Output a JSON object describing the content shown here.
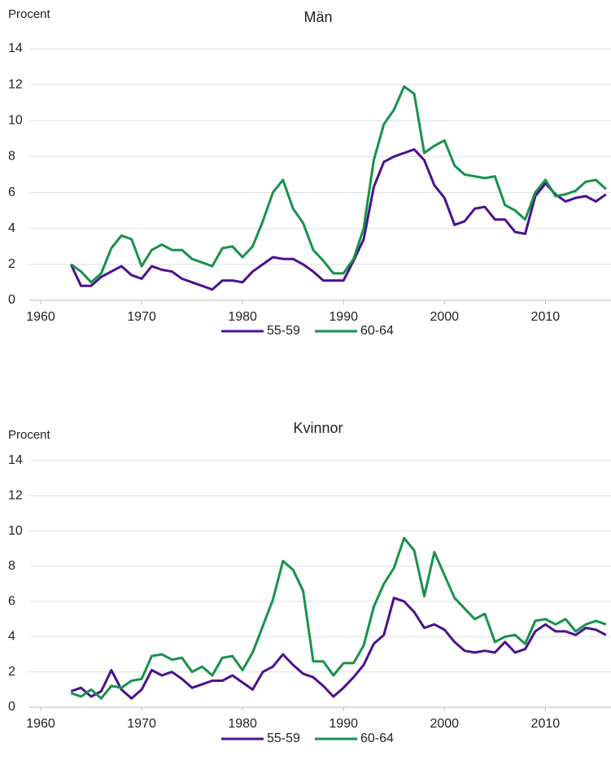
{
  "chart_data": [
    {
      "type": "line",
      "title": "Män",
      "y_label": "Procent",
      "x": [
        1963,
        1964,
        1965,
        1966,
        1967,
        1968,
        1969,
        1970,
        1971,
        1972,
        1973,
        1974,
        1975,
        1976,
        1977,
        1978,
        1979,
        1980,
        1981,
        1982,
        1983,
        1984,
        1985,
        1986,
        1987,
        1988,
        1989,
        1990,
        1991,
        1992,
        1993,
        1994,
        1995,
        1996,
        1997,
        1998,
        1999,
        2000,
        2001,
        2002,
        2003,
        2004,
        2005,
        2006,
        2007,
        2008,
        2009,
        2010,
        2011,
        2012,
        2013,
        2014,
        2015,
        2016
      ],
      "series": [
        {
          "name": "55-59",
          "color": "#4b118f",
          "values": [
            2.0,
            0.8,
            0.8,
            1.3,
            1.6,
            1.9,
            1.4,
            1.2,
            1.9,
            1.7,
            1.6,
            1.2,
            1.0,
            0.8,
            0.6,
            1.1,
            1.1,
            1.0,
            1.6,
            2.0,
            2.4,
            2.3,
            2.3,
            2.0,
            1.6,
            1.1,
            1.1,
            1.1,
            2.2,
            3.4,
            6.3,
            7.7,
            8.0,
            8.2,
            8.4,
            7.8,
            6.4,
            5.7,
            4.2,
            4.4,
            5.1,
            5.2,
            4.5,
            4.5,
            3.8,
            3.7,
            5.8,
            6.5,
            5.9,
            5.5,
            5.7,
            5.8,
            5.5,
            5.9
          ]
        },
        {
          "name": "60-64",
          "color": "#17924b",
          "values": [
            2.0,
            1.6,
            1.0,
            1.5,
            2.9,
            3.6,
            3.4,
            1.9,
            2.8,
            3.1,
            2.8,
            2.8,
            2.3,
            2.1,
            1.9,
            2.9,
            3.0,
            2.4,
            3.0,
            4.4,
            6.0,
            6.7,
            5.1,
            4.3,
            2.8,
            2.2,
            1.5,
            1.5,
            2.3,
            4.0,
            7.8,
            9.8,
            10.6,
            11.9,
            11.5,
            8.2,
            8.6,
            8.9,
            7.5,
            7.0,
            6.9,
            6.8,
            6.9,
            5.3,
            5.0,
            4.5,
            6.0,
            6.7,
            5.8,
            5.9,
            6.1,
            6.6,
            6.7,
            6.2
          ]
        }
      ],
      "xlim": [
        1960,
        2016.5
      ],
      "xticks": [
        1960,
        1970,
        1980,
        1990,
        2000,
        2010
      ],
      "ylim": [
        0,
        14
      ],
      "yticks": [
        0,
        2,
        4,
        6,
        8,
        10,
        12,
        14
      ],
      "grid": true,
      "legend": "bottom"
    },
    {
      "type": "line",
      "title": "Kvinnor",
      "y_label": "Procent",
      "x": [
        1963,
        1964,
        1965,
        1966,
        1967,
        1968,
        1969,
        1970,
        1971,
        1972,
        1973,
        1974,
        1975,
        1976,
        1977,
        1978,
        1979,
        1980,
        1981,
        1982,
        1983,
        1984,
        1985,
        1986,
        1987,
        1988,
        1989,
        1990,
        1991,
        1992,
        1993,
        1994,
        1995,
        1996,
        1997,
        1998,
        1999,
        2000,
        2001,
        2002,
        2003,
        2004,
        2005,
        2006,
        2007,
        2008,
        2009,
        2010,
        2011,
        2012,
        2013,
        2014,
        2015,
        2016
      ],
      "series": [
        {
          "name": "55-59",
          "color": "#4b118f",
          "values": [
            0.9,
            1.1,
            0.6,
            0.9,
            2.1,
            1.0,
            0.5,
            1.0,
            2.1,
            1.8,
            2.0,
            1.6,
            1.1,
            1.3,
            1.5,
            1.5,
            1.8,
            1.4,
            1.0,
            2.0,
            2.3,
            3.0,
            2.4,
            1.9,
            1.7,
            1.2,
            0.6,
            1.1,
            1.7,
            2.4,
            3.6,
            4.1,
            6.2,
            6.0,
            5.4,
            4.5,
            4.7,
            4.4,
            3.7,
            3.2,
            3.1,
            3.2,
            3.1,
            3.7,
            3.1,
            3.3,
            4.3,
            4.7,
            4.3,
            4.3,
            4.1,
            4.5,
            4.4,
            4.1
          ]
        },
        {
          "name": "60-64",
          "color": "#17924b",
          "values": [
            0.8,
            0.6,
            1.0,
            0.5,
            1.2,
            1.1,
            1.5,
            1.6,
            2.9,
            3.0,
            2.7,
            2.8,
            2.0,
            2.3,
            1.8,
            2.8,
            2.9,
            2.1,
            3.1,
            4.6,
            6.1,
            8.3,
            7.8,
            6.6,
            2.6,
            2.6,
            1.8,
            2.5,
            2.5,
            3.5,
            5.7,
            7.0,
            7.9,
            9.6,
            8.9,
            6.3,
            8.8,
            7.5,
            6.2,
            5.6,
            5.0,
            5.3,
            3.7,
            4.0,
            4.1,
            3.6,
            4.9,
            5.0,
            4.7,
            5.0,
            4.3,
            4.7,
            4.9,
            4.7
          ]
        }
      ],
      "xlim": [
        1960,
        2016.5
      ],
      "xticks": [
        1960,
        1970,
        1980,
        1990,
        2000,
        2010
      ],
      "ylim": [
        0,
        14
      ],
      "yticks": [
        0,
        2,
        4,
        6,
        8,
        10,
        12,
        14
      ],
      "grid": true,
      "legend": "bottom"
    }
  ]
}
